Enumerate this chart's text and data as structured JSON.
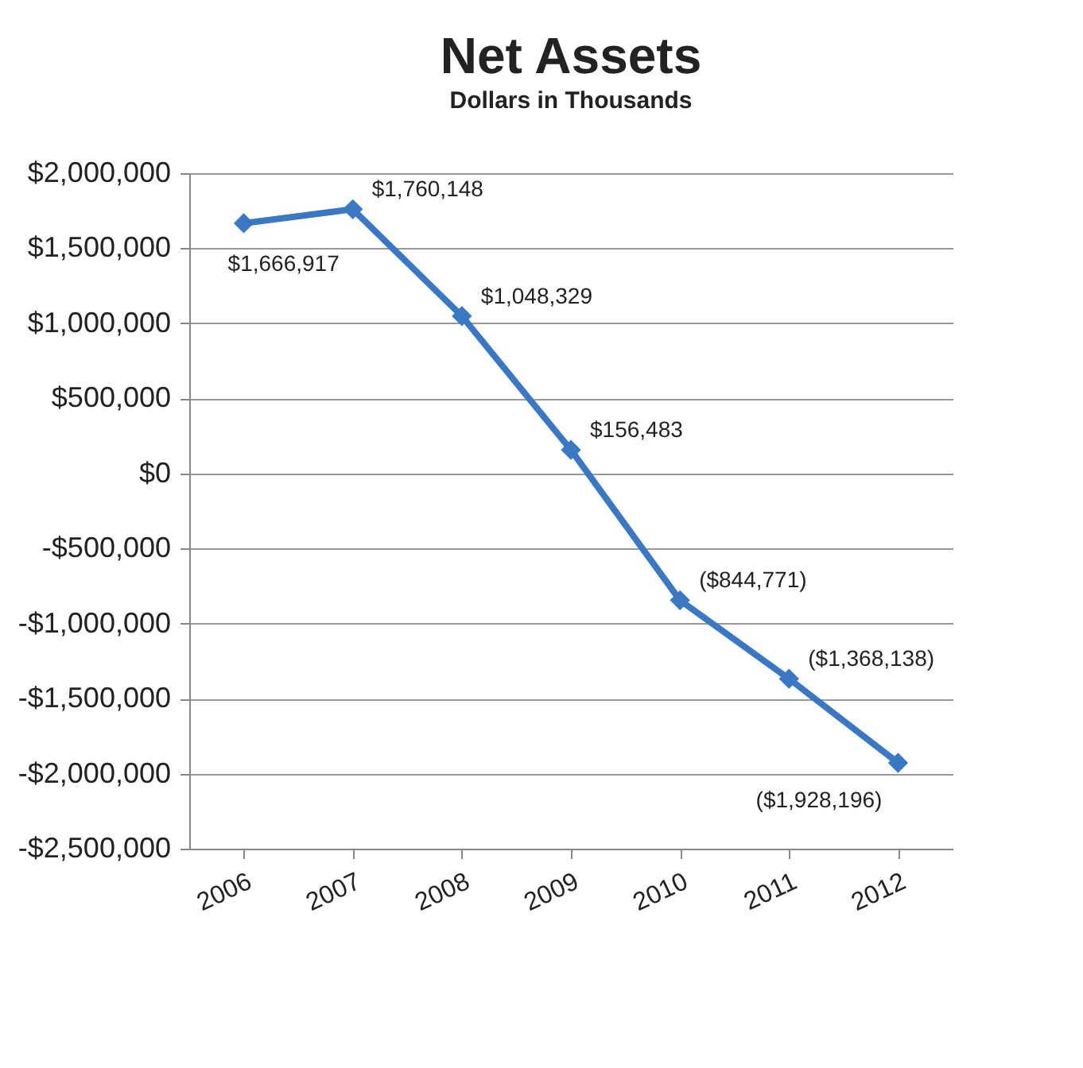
{
  "chart_data": {
    "type": "line",
    "title": "Net Assets",
    "subtitle": "Dollars in Thousands",
    "categories": [
      "2006",
      "2007",
      "2008",
      "2009",
      "2010",
      "2011",
      "2012"
    ],
    "series": [
      {
        "color": "#3a78c4",
        "values": [
          1666917,
          1760148,
          1048329,
          156483,
          -844771,
          -1368138,
          -1928196
        ],
        "value_labels": [
          "$1,666,917",
          "$1,760,148",
          "$1,048,329",
          "$156,483",
          "($844,771)",
          "($1,368,138)",
          "($1,928,196)"
        ]
      }
    ],
    "ylim": [
      -2500000,
      2000000
    ],
    "yticks": [
      {
        "value": -2500000,
        "label": "-$2,500,000"
      },
      {
        "value": -2000000,
        "label": "-$2,000,000"
      },
      {
        "value": -1500000,
        "label": "-$1,500,000"
      },
      {
        "value": -1000000,
        "label": "-$1,000,000"
      },
      {
        "value": -500000,
        "label": "-$500,000"
      },
      {
        "value": 0,
        "label": "$0"
      },
      {
        "value": 500000,
        "label": "$500,000"
      },
      {
        "value": 1000000,
        "label": "$1,000,000"
      },
      {
        "value": 1500000,
        "label": "$1,500,000"
      },
      {
        "value": 2000000,
        "label": "$2,000,000"
      }
    ],
    "grid": "y",
    "marker": "diamond",
    "line_style": "solid"
  }
}
